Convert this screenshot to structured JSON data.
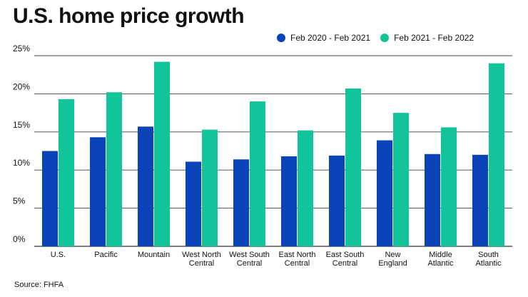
{
  "chart_data": {
    "type": "bar",
    "title": "U.S. home price growth",
    "categories": [
      [
        "U.S."
      ],
      [
        "Pacific"
      ],
      [
        "Mountain"
      ],
      [
        "West North",
        "Central"
      ],
      [
        "West South",
        "Central"
      ],
      [
        "East North",
        "Central"
      ],
      [
        "East South",
        "Central"
      ],
      [
        "New",
        "England"
      ],
      [
        "Middle",
        "Atlantic"
      ],
      [
        "South",
        "Atlantic"
      ]
    ],
    "series": [
      {
        "name": "Feb 2020 - Feb 2021",
        "color": "#0a44b8",
        "values": [
          12.5,
          14.3,
          15.7,
          11.1,
          11.4,
          11.8,
          11.9,
          13.9,
          12.1,
          12.0
        ]
      },
      {
        "name": "Feb 2021 - Feb 2022",
        "color": "#12c49a",
        "values": [
          19.3,
          20.2,
          24.2,
          15.3,
          19.0,
          15.2,
          20.7,
          17.5,
          15.6,
          24.0
        ]
      }
    ],
    "yticks": [
      "0%",
      "5%",
      "10%",
      "15%",
      "20%",
      "25%"
    ],
    "ylim": [
      0,
      25
    ],
    "xlabel": "",
    "ylabel": "",
    "source": "Source: FHFA"
  }
}
